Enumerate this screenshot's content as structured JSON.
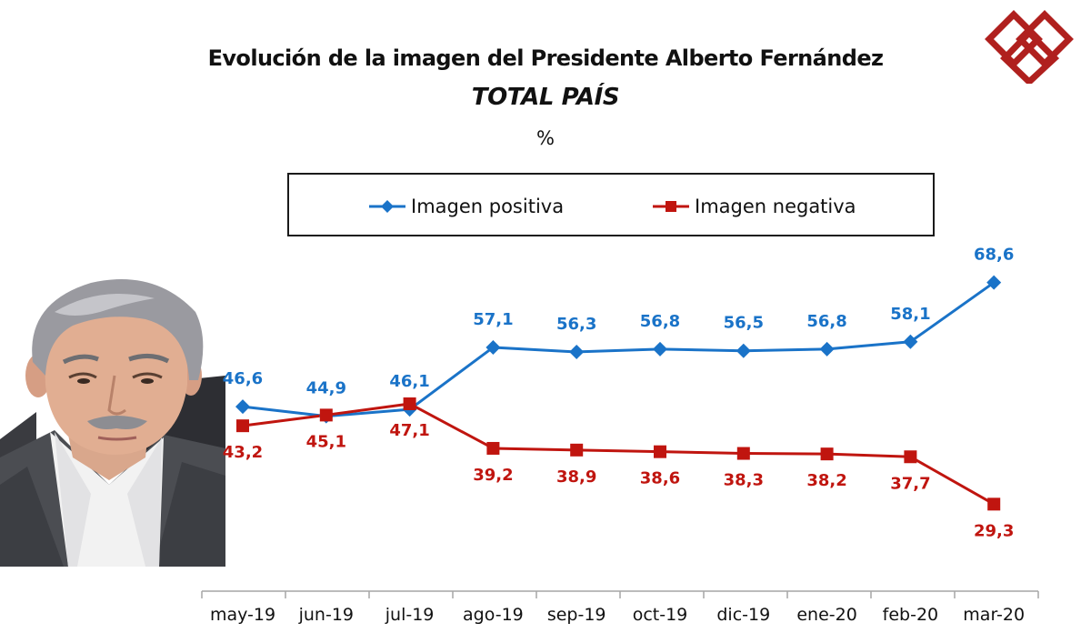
{
  "chart_data": {
    "type": "line",
    "title": "Evolución de la imagen del Presidente Alberto Fernández",
    "subtitle": "TOTAL PAÍS",
    "unit_label": "%",
    "categories": [
      "may-19",
      "jun-19",
      "jul-19",
      "ago-19",
      "sep-19",
      "oct-19",
      "dic-19",
      "ene-20",
      "feb-20",
      "mar-20"
    ],
    "series": [
      {
        "name": "Imagen positiva",
        "color": "#1a73c8",
        "marker": "diamond",
        "values": [
          46.6,
          44.9,
          46.1,
          57.1,
          56.3,
          56.8,
          56.5,
          56.8,
          58.1,
          68.6
        ],
        "labels": [
          "46,6",
          "44,9",
          "46,1",
          "57,1",
          "56,3",
          "56,8",
          "56,5",
          "56,8",
          "58,1",
          "68,6"
        ]
      },
      {
        "name": "Imagen negativa",
        "color": "#c0150f",
        "marker": "square",
        "values": [
          43.2,
          45.1,
          47.1,
          39.2,
          38.9,
          38.6,
          38.3,
          38.2,
          37.7,
          29.3
        ],
        "labels": [
          "43,2",
          "45,1",
          "47,1",
          "39,2",
          "38,9",
          "38,6",
          "38,3",
          "38,2",
          "37,7",
          "29,3"
        ]
      }
    ],
    "xlabel": "",
    "ylabel": "",
    "legend_position": "top",
    "grid": false
  },
  "header": {
    "title": "Evolución de la imagen del Presidente Alberto Fernández",
    "subtitle": "TOTAL PAÍS",
    "unit": "%"
  },
  "legend": {
    "positive": "Imagen positiva",
    "negative": "Imagen negativa"
  },
  "colors": {
    "positive": "#1a73c8",
    "negative": "#c0150f",
    "logo": "#b0201e"
  }
}
